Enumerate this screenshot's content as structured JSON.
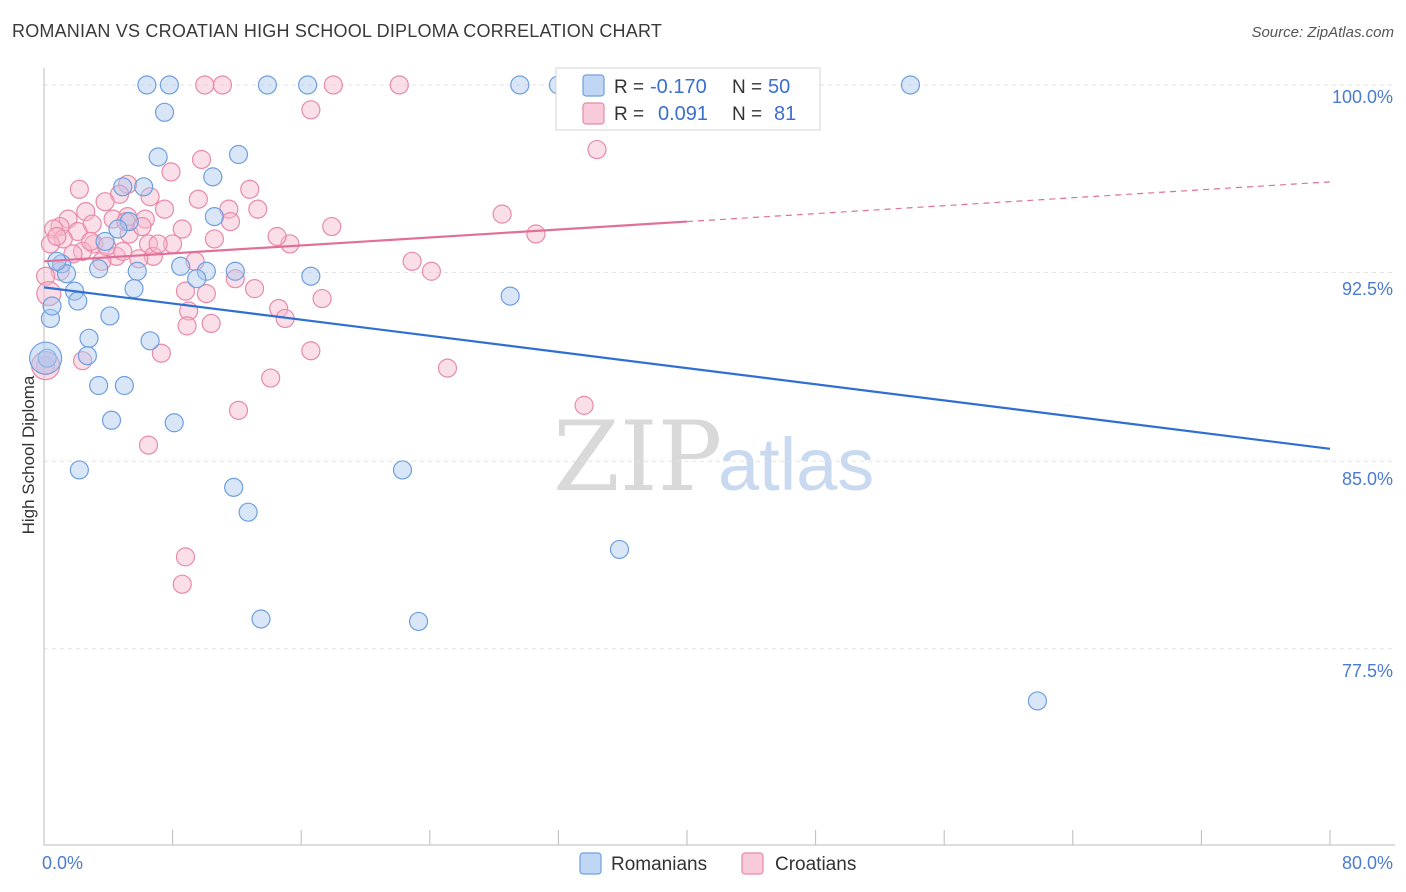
{
  "title": "ROMANIAN VS CROATIAN HIGH SCHOOL DIPLOMA CORRELATION CHART",
  "source": "Source: ZipAtlas.com",
  "watermark": {
    "zip": "ZIP",
    "atlas": "atlas"
  },
  "chart_data": {
    "type": "scatter",
    "ylabel": "High School Diploma",
    "xlim": [
      0,
      80
    ],
    "ylim": [
      70.0,
      100.8
    ],
    "x_tick_labels": [
      {
        "value": 0,
        "label": "0.0%"
      },
      {
        "value": 80,
        "label": "80.0%"
      }
    ],
    "y_tick_labels": [
      {
        "value": 100.0,
        "label": "100.0%"
      },
      {
        "value": 92.5,
        "label": "92.5%"
      },
      {
        "value": 85.0,
        "label": "85.0%"
      },
      {
        "value": 77.5,
        "label": "77.5%"
      }
    ],
    "legend": {
      "rows": [
        {
          "r_label": "R =",
          "r_value": "-0.170",
          "n_label": "N =",
          "n_value": "50"
        },
        {
          "r_label": "R =",
          "r_value": "0.091",
          "n_label": "N =",
          "n_value": "81"
        }
      ]
    },
    "bottom_legend": [
      "Romanians",
      "Croatians"
    ],
    "colors": {
      "romanians_fill": "#aac8f0",
      "romanians_stroke": "#6f9fdf",
      "romanians_line": "#2f6fd1",
      "croatians_fill": "#f7b8cc",
      "croatians_stroke": "#e88aa8",
      "croatians_line": "#e0709a",
      "grid": "#e3e3e3",
      "axis": "#bbbbbb"
    },
    "series": [
      {
        "name": "Romanians",
        "trend": {
          "x0": 0,
          "y0": 92.45,
          "x1": 80,
          "y1": 85.95,
          "solid_to": 80
        },
        "points": [
          [
            6.4,
            100.6
          ],
          [
            7.8,
            100.6
          ],
          [
            13.9,
            100.6
          ],
          [
            16.4,
            100.6
          ],
          [
            29.6,
            100.6
          ],
          [
            32.0,
            100.6
          ],
          [
            53.9,
            100.6
          ],
          [
            7.5,
            99.5
          ],
          [
            7.1,
            97.7
          ],
          [
            12.1,
            97.8
          ],
          [
            10.5,
            96.9
          ],
          [
            4.9,
            96.5
          ],
          [
            6.2,
            96.5
          ],
          [
            10.6,
            95.3
          ],
          [
            5.3,
            95.1
          ],
          [
            4.6,
            94.8
          ],
          [
            3.8,
            94.3
          ],
          [
            1.1,
            93.4
          ],
          [
            3.4,
            93.2
          ],
          [
            5.8,
            93.1
          ],
          [
            8.5,
            93.3
          ],
          [
            10.1,
            93.1
          ],
          [
            11.9,
            93.1
          ],
          [
            16.6,
            92.9
          ],
          [
            1.4,
            93.0
          ],
          [
            9.5,
            92.8
          ],
          [
            5.6,
            92.4
          ],
          [
            1.9,
            92.3
          ],
          [
            2.1,
            91.9
          ],
          [
            29.0,
            92.1
          ],
          [
            0.4,
            91.2
          ],
          [
            4.1,
            91.3
          ],
          [
            2.8,
            90.4
          ],
          [
            6.6,
            90.3
          ],
          [
            2.7,
            89.7
          ],
          [
            0.2,
            89.6
          ],
          [
            3.4,
            88.5
          ],
          [
            5.0,
            88.5
          ],
          [
            4.2,
            87.1
          ],
          [
            8.1,
            87.0
          ],
          [
            2.2,
            85.1
          ],
          [
            22.3,
            85.1
          ],
          [
            11.8,
            84.4
          ],
          [
            12.7,
            83.4
          ],
          [
            35.8,
            81.9
          ],
          [
            13.5,
            79.1
          ],
          [
            23.3,
            79.0
          ],
          [
            61.8,
            75.8
          ],
          [
            0.5,
            91.7
          ],
          [
            0.8,
            93.5
          ]
        ]
      },
      {
        "name": "Croatians",
        "trend": {
          "x0": 0,
          "y0": 93.5,
          "x1": 80,
          "y1": 96.7,
          "solid_to": 40
        },
        "points": [
          [
            10.0,
            100.6
          ],
          [
            11.1,
            100.6
          ],
          [
            18.0,
            100.6
          ],
          [
            22.1,
            100.6
          ],
          [
            37.9,
            100.6
          ],
          [
            16.6,
            99.6
          ],
          [
            34.4,
            98.0
          ],
          [
            9.8,
            97.6
          ],
          [
            7.9,
            97.1
          ],
          [
            5.2,
            96.6
          ],
          [
            12.8,
            96.4
          ],
          [
            2.2,
            96.4
          ],
          [
            4.7,
            96.2
          ],
          [
            6.6,
            96.1
          ],
          [
            9.6,
            96.0
          ],
          [
            3.8,
            95.9
          ],
          [
            7.5,
            95.6
          ],
          [
            11.5,
            95.6
          ],
          [
            13.3,
            95.6
          ],
          [
            2.6,
            95.5
          ],
          [
            5.2,
            95.3
          ],
          [
            1.5,
            95.2
          ],
          [
            4.3,
            95.2
          ],
          [
            6.3,
            95.2
          ],
          [
            28.5,
            95.4
          ],
          [
            11.6,
            95.1
          ],
          [
            3.0,
            95.0
          ],
          [
            1.0,
            94.9
          ],
          [
            0.6,
            94.8
          ],
          [
            8.6,
            94.8
          ],
          [
            2.1,
            94.7
          ],
          [
            5.3,
            94.6
          ],
          [
            1.2,
            94.4
          ],
          [
            30.6,
            94.6
          ],
          [
            0.4,
            94.2
          ],
          [
            3.1,
            94.2
          ],
          [
            15.3,
            94.2
          ],
          [
            6.5,
            94.2
          ],
          [
            8.0,
            94.2
          ],
          [
            2.4,
            93.9
          ],
          [
            4.5,
            93.7
          ],
          [
            6.8,
            93.7
          ],
          [
            9.4,
            93.5
          ],
          [
            3.6,
            93.5
          ],
          [
            22.9,
            93.5
          ],
          [
            24.1,
            93.1
          ],
          [
            1.0,
            93.1
          ],
          [
            0.1,
            92.9
          ],
          [
            11.9,
            92.8
          ],
          [
            13.1,
            92.4
          ],
          [
            8.8,
            92.3
          ],
          [
            10.1,
            92.2
          ],
          [
            17.3,
            92.0
          ],
          [
            14.6,
            91.6
          ],
          [
            9.0,
            91.5
          ],
          [
            15.0,
            91.2
          ],
          [
            10.4,
            91.0
          ],
          [
            8.9,
            90.9
          ],
          [
            16.6,
            89.9
          ],
          [
            7.3,
            89.8
          ],
          [
            2.4,
            89.5
          ],
          [
            25.1,
            89.2
          ],
          [
            0.1,
            89.3
          ],
          [
            14.1,
            88.8
          ],
          [
            12.1,
            87.5
          ],
          [
            33.6,
            87.7
          ],
          [
            6.5,
            86.1
          ],
          [
            8.8,
            81.6
          ],
          [
            8.6,
            80.5
          ],
          [
            5.1,
            95.1
          ],
          [
            3.9,
            94.1
          ],
          [
            6.1,
            94.9
          ],
          [
            1.8,
            93.8
          ],
          [
            7.1,
            94.2
          ],
          [
            14.5,
            94.5
          ],
          [
            0.8,
            94.5
          ],
          [
            4.9,
            93.9
          ],
          [
            2.9,
            94.3
          ],
          [
            5.9,
            93.6
          ],
          [
            10.6,
            94.4
          ],
          [
            17.9,
            94.9
          ]
        ]
      }
    ]
  }
}
